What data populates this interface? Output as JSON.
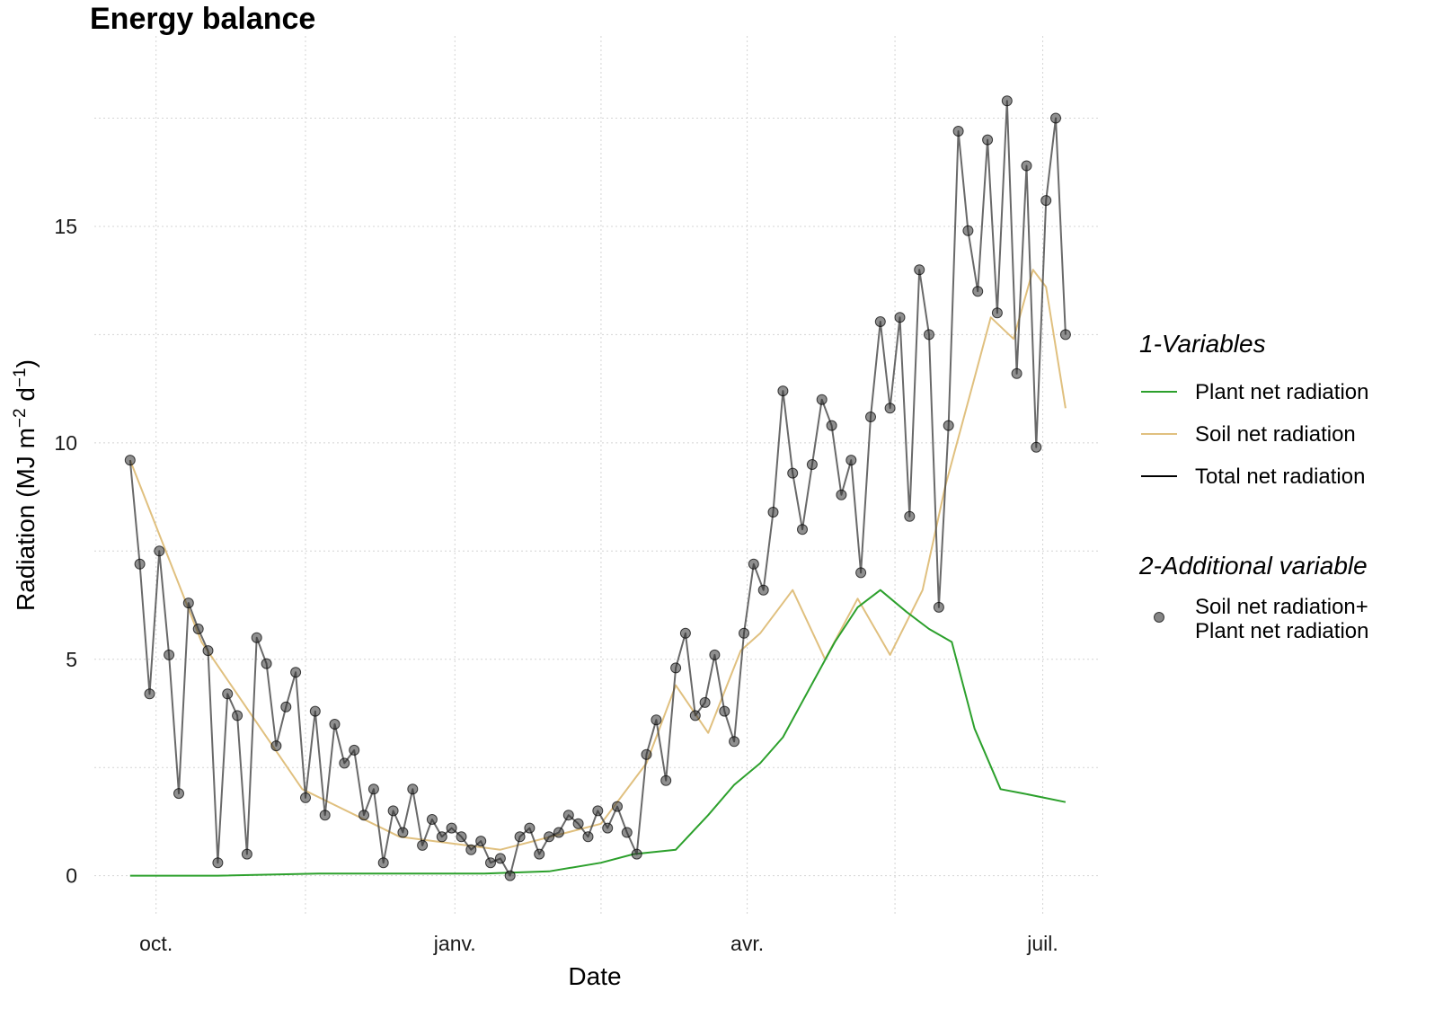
{
  "chart_data": {
    "type": "line",
    "title": "Energy balance",
    "xlabel": "Date",
    "ylabel": "Radiation (MJ m−2 d−1)",
    "ylabel_parts": {
      "main": "Radiation (MJ m",
      "exp1": "−2",
      "mid": " d",
      "exp2": "−1",
      "end": ")"
    },
    "x_range": [
      "2016-09-23",
      "2017-07-08"
    ],
    "xlim": [
      "2016-09-12",
      "2017-07-18"
    ],
    "ylim": [
      -0.9,
      19.4
    ],
    "x_ticks": [
      {
        "date": "2016-10-01",
        "label": "oct."
      },
      {
        "date": "2017-01-01",
        "label": "janv."
      },
      {
        "date": "2017-04-01",
        "label": "avr."
      },
      {
        "date": "2017-07-01",
        "label": "juil."
      }
    ],
    "y_ticks": [
      {
        "value": 0,
        "label": "0"
      },
      {
        "value": 5,
        "label": "5"
      },
      {
        "value": 10,
        "label": "10"
      },
      {
        "value": 15,
        "label": "15"
      }
    ],
    "grid": true,
    "legend_position": "right",
    "legend": {
      "group1_title": "1-Variables",
      "group1_items": [
        {
          "name": "Plant net radiation",
          "color": "#2ca02c"
        },
        {
          "name": "Soil net radiation",
          "color": "#e0c07f"
        },
        {
          "name": "Total net radiation",
          "color": "#000000"
        }
      ],
      "group2_title": "2-Additional variable",
      "group2_item_lines": [
        "Soil net radiation+",
        "Plant net radiation"
      ]
    },
    "colors": {
      "plant": "#2ca02c",
      "soil": "#e0c07f",
      "total": "#444444",
      "points": "#333333"
    },
    "series": [
      {
        "name": "Total net radiation",
        "x": [
          "2016-09-23",
          "2016-09-26",
          "2016-09-29",
          "2016-10-02",
          "2016-10-05",
          "2016-10-08",
          "2016-10-11",
          "2016-10-14",
          "2016-10-17",
          "2016-10-20",
          "2016-10-23",
          "2016-10-26",
          "2016-10-29",
          "2016-11-01",
          "2016-11-04",
          "2016-11-07",
          "2016-11-10",
          "2016-11-13",
          "2016-11-16",
          "2016-11-19",
          "2016-11-22",
          "2016-11-25",
          "2016-11-28",
          "2016-12-01",
          "2016-12-04",
          "2016-12-07",
          "2016-12-10",
          "2016-12-13",
          "2016-12-16",
          "2016-12-19",
          "2016-12-22",
          "2016-12-25",
          "2016-12-28",
          "2016-12-31",
          "2017-01-03",
          "2017-01-06",
          "2017-01-09",
          "2017-01-12",
          "2017-01-15",
          "2017-01-18",
          "2017-01-21",
          "2017-01-24",
          "2017-01-27",
          "2017-01-30",
          "2017-02-02",
          "2017-02-05",
          "2017-02-08",
          "2017-02-11",
          "2017-02-14",
          "2017-02-17",
          "2017-02-20",
          "2017-02-23",
          "2017-02-26",
          "2017-03-01",
          "2017-03-04",
          "2017-03-07",
          "2017-03-10",
          "2017-03-13",
          "2017-03-16",
          "2017-03-19",
          "2017-03-22",
          "2017-03-25",
          "2017-03-28",
          "2017-03-31",
          "2017-04-03",
          "2017-04-06",
          "2017-04-09",
          "2017-04-12",
          "2017-04-15",
          "2017-04-18",
          "2017-04-21",
          "2017-04-24",
          "2017-04-27",
          "2017-04-30",
          "2017-05-03",
          "2017-05-06",
          "2017-05-09",
          "2017-05-12",
          "2017-05-15",
          "2017-05-18",
          "2017-05-21",
          "2017-05-24",
          "2017-05-27",
          "2017-05-30",
          "2017-06-02",
          "2017-06-05",
          "2017-06-08",
          "2017-06-11",
          "2017-06-14",
          "2017-06-17",
          "2017-06-20",
          "2017-06-23",
          "2017-06-26",
          "2017-06-29",
          "2017-07-02",
          "2017-07-05",
          "2017-07-08"
        ],
        "y": [
          9.6,
          7.2,
          4.2,
          7.5,
          5.1,
          1.9,
          6.3,
          5.7,
          5.2,
          0.3,
          4.2,
          3.7,
          0.5,
          5.5,
          4.9,
          3.0,
          3.9,
          4.7,
          1.8,
          3.8,
          1.4,
          3.5,
          2.6,
          2.9,
          1.4,
          2.0,
          0.3,
          1.5,
          1.0,
          2.0,
          0.7,
          1.3,
          0.9,
          1.1,
          0.9,
          0.6,
          0.8,
          0.3,
          0.4,
          0.0,
          0.9,
          1.1,
          0.5,
          0.9,
          1.0,
          1.4,
          1.2,
          0.9,
          1.5,
          1.1,
          1.6,
          1.0,
          0.5,
          2.8,
          3.6,
          2.2,
          4.8,
          5.6,
          3.7,
          4.0,
          5.1,
          3.8,
          3.1,
          5.6,
          7.2,
          6.6,
          8.4,
          11.2,
          9.3,
          8.0,
          9.5,
          11.0,
          10.4,
          8.8,
          9.6,
          7.0,
          10.6,
          12.8,
          10.8,
          12.9,
          8.3,
          14.0,
          12.5,
          6.2,
          10.4,
          17.2,
          14.9,
          13.5,
          17.0,
          13.0,
          17.9,
          11.6,
          16.4,
          9.9,
          15.6,
          17.5,
          12.5
        ]
      },
      {
        "name": "Soil net radiation",
        "x": [
          "2016-09-23",
          "2016-10-15",
          "2016-11-15",
          "2016-12-15",
          "2017-01-15",
          "2017-02-15",
          "2017-03-01",
          "2017-03-10",
          "2017-03-20",
          "2017-03-30",
          "2017-04-05",
          "2017-04-15",
          "2017-04-25",
          "2017-05-05",
          "2017-05-15",
          "2017-05-25",
          "2017-06-01",
          "2017-06-10",
          "2017-06-15",
          "2017-06-22",
          "2017-06-28",
          "2017-07-02",
          "2017-07-08"
        ],
        "y": [
          9.6,
          5.4,
          2.0,
          0.9,
          0.6,
          1.2,
          2.6,
          4.4,
          3.3,
          5.2,
          5.6,
          6.6,
          5.0,
          6.4,
          5.1,
          6.6,
          9.0,
          11.5,
          12.9,
          12.4,
          14.0,
          13.6,
          10.8
        ]
      },
      {
        "name": "Plant net radiation",
        "x": [
          "2016-09-23",
          "2016-10-20",
          "2016-11-20",
          "2016-12-20",
          "2017-01-10",
          "2017-01-30",
          "2017-02-15",
          "2017-02-25",
          "2017-03-10",
          "2017-03-20",
          "2017-03-28",
          "2017-04-05",
          "2017-04-12",
          "2017-04-20",
          "2017-04-28",
          "2017-05-05",
          "2017-05-12",
          "2017-05-20",
          "2017-05-27",
          "2017-06-03",
          "2017-06-10",
          "2017-06-18",
          "2017-06-25",
          "2017-07-08"
        ],
        "y": [
          0.0,
          0.0,
          0.05,
          0.05,
          0.05,
          0.1,
          0.3,
          0.5,
          0.6,
          1.4,
          2.1,
          2.6,
          3.2,
          4.3,
          5.4,
          6.2,
          6.6,
          6.1,
          5.7,
          5.4,
          3.4,
          2.0,
          1.9,
          1.7
        ]
      },
      {
        "name": "Soil net radiation+ Plant net radiation",
        "type": "scatter",
        "same_as": "Total net radiation"
      }
    ]
  }
}
